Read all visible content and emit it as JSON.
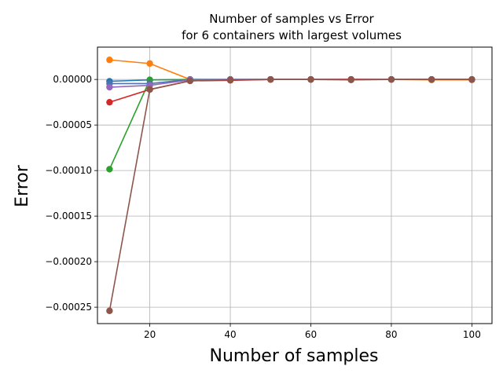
{
  "chart_data": {
    "type": "line",
    "title_line1": "Number of samples vs Error",
    "title_line2": "for 6 containers with largest volumes",
    "xlabel": "Number of samples",
    "ylabel": "Error",
    "xlim": [
      7,
      105
    ],
    "ylim": [
      -0.000268,
      3.55e-05
    ],
    "xticks": [
      20,
      40,
      60,
      80,
      100
    ],
    "xtick_labels": [
      "20",
      "40",
      "60",
      "80",
      "100"
    ],
    "yticks": [
      0.0,
      -5e-05,
      -0.0001,
      -0.00015,
      -0.0002,
      -0.00025
    ],
    "ytick_labels": [
      "0.00000",
      "−0.00005",
      "−0.00010",
      "−0.00015",
      "−0.00020",
      "−0.00025"
    ],
    "grid": true,
    "x": [
      10,
      20,
      30,
      40,
      50,
      60,
      70,
      80,
      90,
      100
    ],
    "series": [
      {
        "color": "#1f77b4",
        "values": [
          -2e-06,
          -5e-07,
          0.0,
          0.0,
          0.0,
          0.0,
          0.0,
          0.0,
          0.0,
          0.0
        ]
      },
      {
        "color": "#ff7f0e",
        "values": [
          2.15e-05,
          1.75e-05,
          0.0,
          -5e-07,
          0.0,
          0.0,
          0.0,
          0.0,
          -5e-07,
          -5e-07
        ]
      },
      {
        "color": "#2ca02c",
        "values": [
          -9.85e-05,
          -5e-07,
          0.0,
          0.0,
          0.0,
          0.0,
          0.0,
          0.0,
          0.0,
          0.0
        ]
      },
      {
        "color": "#4c72b0",
        "values": [
          -4.5e-06,
          -4.5e-06,
          0.0,
          0.0,
          0.0,
          0.0,
          0.0,
          0.0,
          0.0,
          0.0
        ]
      },
      {
        "color": "#9467bd",
        "values": [
          -8.5e-06,
          -6.5e-06,
          -5e-07,
          0.0,
          0.0,
          0.0,
          0.0,
          0.0,
          0.0,
          0.0
        ]
      },
      {
        "color": "#d62728",
        "values": [
          -2.5e-05,
          -1.1e-05,
          -1.5e-06,
          -1e-06,
          0.0,
          0.0,
          0.0,
          0.0,
          0.0,
          0.0
        ]
      },
      {
        "color": "#8c564b",
        "values": [
          -0.000254,
          -1.1e-05,
          -1.5e-06,
          -5e-07,
          0.0,
          0.0,
          -5e-07,
          0.0,
          0.0,
          0.0
        ]
      }
    ]
  }
}
